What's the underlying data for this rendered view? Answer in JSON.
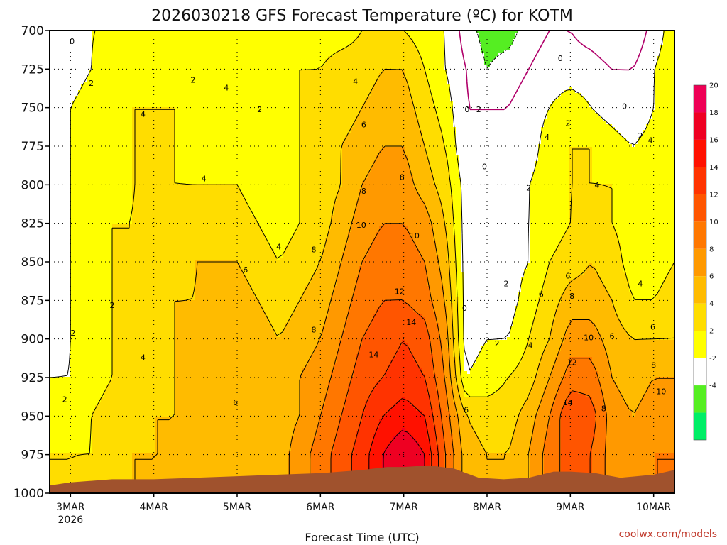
{
  "chart_data": {
    "type": "heatmap",
    "title": "2026030218 GFS Forecast Temperature (ºC) for KOTM",
    "xlabel": "Forecast Time (UTC)",
    "ylabel": "",
    "credit": "coolwx.com/models",
    "y_axis": {
      "unit": "hPa",
      "inverted": true,
      "range": [
        1000,
        700
      ],
      "ticks": [
        700,
        725,
        750,
        775,
        800,
        825,
        850,
        875,
        900,
        925,
        950,
        975,
        1000
      ]
    },
    "x_axis": {
      "range_days": [
        2.75,
        10.25
      ],
      "ticks": [
        {
          "label": "3MAR",
          "sub": "2026",
          "day": 3
        },
        {
          "label": "4MAR",
          "sub": "",
          "day": 4
        },
        {
          "label": "5MAR",
          "sub": "",
          "day": 5
        },
        {
          "label": "6MAR",
          "sub": "",
          "day": 6
        },
        {
          "label": "7MAR",
          "sub": "",
          "day": 7
        },
        {
          "label": "8MAR",
          "sub": "",
          "day": 8
        },
        {
          "label": "9MAR",
          "sub": "",
          "day": 9
        },
        {
          "label": "10MAR",
          "sub": "",
          "day": 10
        }
      ]
    },
    "grid": true,
    "colorbar": {
      "placement": "right",
      "bins": [
        {
          "lo": -6,
          "hi": -4,
          "color": "#00ee66"
        },
        {
          "lo": -4,
          "hi": -2,
          "color": "#55ee22"
        },
        {
          "lo": -2,
          "hi": 2,
          "color": "#ffffff"
        },
        {
          "lo": 2,
          "hi": 4,
          "color": "#ffff00"
        },
        {
          "lo": 4,
          "hi": 6,
          "color": "#ffdd00"
        },
        {
          "lo": 6,
          "hi": 8,
          "color": "#ffbb00"
        },
        {
          "lo": 8,
          "hi": 10,
          "color": "#ff9900"
        },
        {
          "lo": 10,
          "hi": 12,
          "color": "#ff7700"
        },
        {
          "lo": 12,
          "hi": 14,
          "color": "#ff5500"
        },
        {
          "lo": 14,
          "hi": 16,
          "color": "#ff3300"
        },
        {
          "lo": 16,
          "hi": 18,
          "color": "#ff1100"
        },
        {
          "lo": 18,
          "hi": 20,
          "color": "#ee0022"
        },
        {
          "lo": 20,
          "hi": 22,
          "color": "#ee0055"
        }
      ],
      "labels": [
        "20",
        "18",
        "16",
        "14",
        "12",
        "10",
        "8",
        "6",
        "4",
        "2",
        "-2",
        "-4"
      ]
    },
    "terrain": {
      "color": "#a0522d",
      "surface_pressure_hpa": [
        [
          2.75,
          995
        ],
        [
          3.0,
          993
        ],
        [
          3.5,
          991
        ],
        [
          4.0,
          991
        ],
        [
          4.5,
          990
        ],
        [
          5.0,
          989
        ],
        [
          5.5,
          988
        ],
        [
          6.0,
          987
        ],
        [
          6.5,
          985
        ],
        [
          6.8,
          983
        ],
        [
          7.0,
          983
        ],
        [
          7.3,
          982
        ],
        [
          7.6,
          984
        ],
        [
          7.9,
          990
        ],
        [
          8.2,
          991
        ],
        [
          8.5,
          990
        ],
        [
          8.8,
          986
        ],
        [
          9.0,
          986
        ],
        [
          9.3,
          987
        ],
        [
          9.6,
          990
        ],
        [
          10.0,
          988
        ],
        [
          10.25,
          985
        ]
      ]
    },
    "temperature_grid": {
      "days": [
        2.75,
        3.0,
        3.25,
        3.5,
        3.75,
        4.0,
        4.25,
        4.5,
        4.75,
        5.0,
        5.25,
        5.5,
        5.75,
        6.0,
        6.25,
        6.5,
        6.75,
        7.0,
        7.25,
        7.5,
        7.75,
        8.0,
        8.25,
        8.5,
        8.75,
        9.0,
        9.25,
        9.5,
        9.75,
        10.0,
        10.25
      ],
      "levels_hpa": [
        700,
        725,
        750,
        775,
        800,
        825,
        850,
        875,
        900,
        925,
        950,
        975,
        1000
      ],
      "values_c": [
        [
          0,
          1,
          2,
          2,
          2,
          2,
          3,
          3,
          3,
          2,
          2,
          3,
          3,
          3,
          3,
          4,
          5,
          4,
          3,
          2,
          -1,
          -3,
          -3,
          -1,
          0,
          0,
          -1,
          -2,
          -2,
          1,
          3
        ],
        [
          1,
          1,
          2,
          3,
          3,
          3,
          3,
          3,
          3,
          3,
          3,
          3,
          4,
          4,
          5,
          5,
          6,
          6,
          4,
          2,
          0,
          -2,
          -1,
          0,
          1,
          1,
          1,
          0,
          0,
          2,
          3
        ],
        [
          1,
          2,
          3,
          3,
          4,
          4,
          4,
          3,
          3,
          3,
          2,
          3,
          4,
          5,
          5,
          6,
          7,
          7,
          5,
          3,
          0,
          0,
          0,
          1,
          2,
          3,
          2,
          1,
          0,
          2,
          4
        ],
        [
          1,
          2,
          3,
          3,
          4,
          4,
          4,
          3,
          3,
          3,
          3,
          3,
          4,
          5,
          6,
          7,
          8,
          8,
          6,
          4,
          0,
          0,
          0,
          1,
          3,
          4,
          4,
          3,
          2,
          3,
          4
        ],
        [
          1,
          2,
          3,
          3,
          4,
          4,
          4,
          4,
          4,
          4,
          3,
          2,
          4,
          5,
          6,
          8,
          9,
          9,
          7,
          5,
          1,
          0,
          0,
          2,
          3,
          4,
          4,
          4,
          3,
          3,
          4
        ],
        [
          1,
          2,
          3,
          4,
          4,
          5,
          5,
          5,
          5,
          5,
          4,
          3,
          4,
          5,
          7,
          9,
          10,
          10,
          9,
          6,
          1,
          0,
          1,
          2,
          3,
          4,
          5,
          4,
          3,
          3,
          4
        ],
        [
          1,
          2,
          3,
          4,
          4,
          5,
          5,
          6,
          6,
          6,
          5,
          4,
          5,
          6,
          8,
          10,
          11,
          11,
          10,
          7,
          1,
          0,
          1,
          2,
          4,
          5,
          6,
          5,
          3,
          3,
          4
        ],
        [
          1,
          2,
          3,
          4,
          4,
          5,
          6,
          6,
          7,
          7,
          6,
          5,
          6,
          7,
          9,
          11,
          12,
          12,
          11,
          8,
          1,
          0,
          1,
          3,
          5,
          7,
          7,
          6,
          4,
          4,
          5
        ],
        [
          1,
          2,
          3,
          4,
          4,
          5,
          6,
          7,
          7,
          7,
          7,
          6,
          7,
          8,
          10,
          12,
          13,
          14,
          13,
          9,
          1,
          2,
          2,
          4,
          6,
          9,
          9,
          7,
          6,
          6,
          6
        ],
        [
          2,
          2,
          3,
          4,
          4,
          5,
          6,
          7,
          7,
          7,
          7,
          7,
          8,
          9,
          11,
          13,
          14,
          15,
          14,
          10,
          2,
          3,
          4,
          5,
          8,
          11,
          11,
          8,
          7,
          8,
          8
        ],
        [
          3,
          3,
          4,
          5,
          5,
          6,
          6,
          7,
          7,
          7,
          7,
          7,
          8,
          10,
          12,
          14,
          16,
          17,
          16,
          11,
          6,
          5,
          5,
          7,
          10,
          14,
          13,
          9,
          8,
          9,
          9
        ],
        [
          4,
          4,
          4,
          5,
          6,
          6,
          6,
          7,
          7,
          7,
          7,
          7,
          9,
          11,
          13,
          15,
          18,
          20,
          18,
          12,
          7,
          6,
          6,
          8,
          11,
          13,
          12,
          9,
          9,
          10,
          10
        ],
        [
          4,
          4,
          5,
          5,
          6,
          6,
          6,
          7,
          7,
          7,
          7,
          7,
          9,
          11,
          13,
          15,
          18,
          20,
          18,
          12,
          7,
          6,
          6,
          8,
          11,
          13,
          12,
          9,
          9,
          10,
          10
        ]
      ]
    },
    "contour_labels": [
      {
        "t": "0",
        "d": 3.02,
        "p": 707
      },
      {
        "t": "2",
        "d": 3.25,
        "p": 734
      },
      {
        "t": "4",
        "d": 3.87,
        "p": 754
      },
      {
        "t": "2",
        "d": 4.47,
        "p": 732
      },
      {
        "t": "4",
        "d": 4.87,
        "p": 737
      },
      {
        "t": "2",
        "d": 5.27,
        "p": 751
      },
      {
        "t": "4",
        "d": 4.6,
        "p": 796
      },
      {
        "t": "4",
        "d": 5.5,
        "p": 840
      },
      {
        "t": "6",
        "d": 5.1,
        "p": 855
      },
      {
        "t": "8",
        "d": 5.92,
        "p": 842
      },
      {
        "t": "8",
        "d": 5.92,
        "p": 894
      },
      {
        "t": "4",
        "d": 3.87,
        "p": 912
      },
      {
        "t": "6",
        "d": 4.98,
        "p": 941
      },
      {
        "t": "2",
        "d": 2.93,
        "p": 939
      },
      {
        "t": "2",
        "d": 3.03,
        "p": 896
      },
      {
        "t": "2",
        "d": 3.5,
        "p": 878
      },
      {
        "t": "4",
        "d": 6.42,
        "p": 733
      },
      {
        "t": "6",
        "d": 6.52,
        "p": 761
      },
      {
        "t": "8",
        "d": 6.52,
        "p": 804
      },
      {
        "t": "8",
        "d": 6.98,
        "p": 795
      },
      {
        "t": "10",
        "d": 6.49,
        "p": 826
      },
      {
        "t": "10",
        "d": 7.13,
        "p": 833
      },
      {
        "t": "12",
        "d": 6.95,
        "p": 869
      },
      {
        "t": "14",
        "d": 7.09,
        "p": 889
      },
      {
        "t": "14",
        "d": 6.64,
        "p": 910
      },
      {
        "t": "6",
        "d": 7.75,
        "p": 946
      },
      {
        "t": "0",
        "d": 7.73,
        "p": 880
      },
      {
        "t": "0",
        "d": 7.76,
        "p": 751
      },
      {
        "t": "2",
        "d": 7.9,
        "p": 751
      },
      {
        "t": "0",
        "d": 7.97,
        "p": 788
      },
      {
        "t": "2",
        "d": 8.23,
        "p": 864
      },
      {
        "t": "2",
        "d": 8.12,
        "p": 903
      },
      {
        "t": "4",
        "d": 8.52,
        "p": 904
      },
      {
        "t": "2",
        "d": 8.5,
        "p": 802
      },
      {
        "t": "4",
        "d": 8.72,
        "p": 769
      },
      {
        "t": "2",
        "d": 8.97,
        "p": 760
      },
      {
        "t": "0",
        "d": 8.88,
        "p": 718
      },
      {
        "t": "0",
        "d": 9.65,
        "p": 749
      },
      {
        "t": "4",
        "d": 9.32,
        "p": 800
      },
      {
        "t": "6",
        "d": 8.97,
        "p": 859
      },
      {
        "t": "6",
        "d": 8.65,
        "p": 871
      },
      {
        "t": "8",
        "d": 9.02,
        "p": 872
      },
      {
        "t": "10",
        "d": 9.22,
        "p": 899
      },
      {
        "t": "12",
        "d": 9.02,
        "p": 915
      },
      {
        "t": "14",
        "d": 8.97,
        "p": 941
      },
      {
        "t": "8",
        "d": 9.4,
        "p": 945
      },
      {
        "t": "6",
        "d": 9.5,
        "p": 898
      },
      {
        "t": "4",
        "d": 9.84,
        "p": 864
      },
      {
        "t": "2",
        "d": 9.84,
        "p": 768
      },
      {
        "t": "4",
        "d": 9.96,
        "p": 771
      },
      {
        "t": "6",
        "d": 9.99,
        "p": 892
      },
      {
        "t": "8",
        "d": 10.0,
        "p": 917
      },
      {
        "t": "10",
        "d": 10.09,
        "p": 934
      }
    ]
  }
}
